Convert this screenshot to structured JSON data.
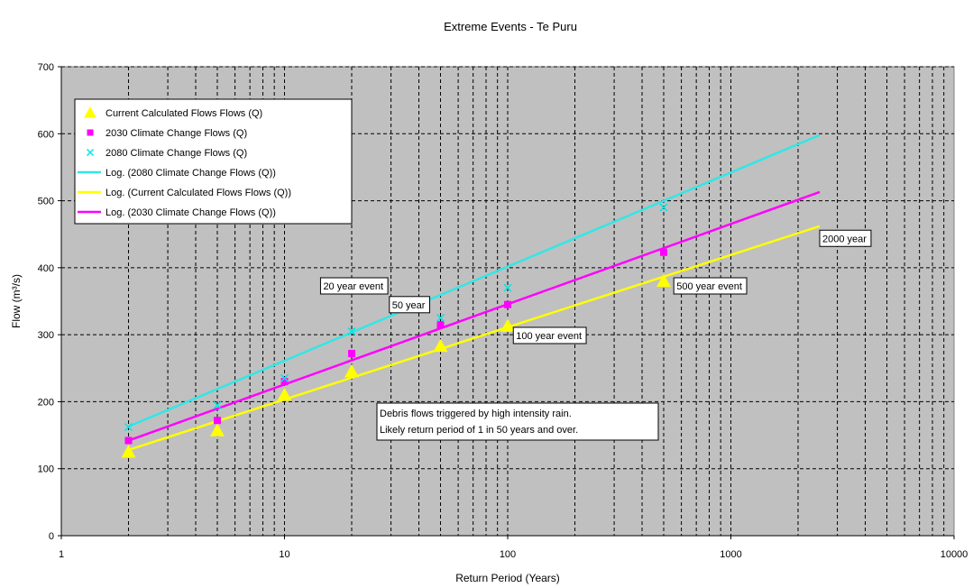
{
  "chart_data": {
    "type": "scatter",
    "title": "Extreme Events - Te Puru",
    "xlabel": "Return Period (Years)",
    "ylabel": "Flow (m³/s)",
    "xscale": "log",
    "xlim": [
      1,
      10000
    ],
    "ylim": [
      0,
      700
    ],
    "x_ticks": [
      1,
      10,
      100,
      1000,
      10000
    ],
    "x_tick_labels": [
      "1",
      "10",
      "100",
      "1000",
      "10000"
    ],
    "y_ticks": [
      0,
      100,
      200,
      300,
      400,
      500,
      600,
      700
    ],
    "y_tick_labels": [
      "0",
      "100",
      "200",
      "300",
      "400",
      "500",
      "600",
      "700"
    ],
    "grid": true,
    "legend_position": "top-left",
    "series": [
      {
        "name": "Current Calculated Flows Flows (Q)",
        "marker": "triangle",
        "color": "#ffff00",
        "x": [
          2,
          5,
          10,
          20,
          50,
          100,
          500
        ],
        "y": [
          125,
          157,
          210,
          245,
          283,
          313,
          380
        ]
      },
      {
        "name": "2030 Climate Change Flows (Q)",
        "marker": "square",
        "color": "#ff00ff",
        "x": [
          2,
          5,
          10,
          20,
          50,
          100,
          500
        ],
        "y": [
          142,
          172,
          230,
          272,
          315,
          345,
          423
        ]
      },
      {
        "name": "2080 Climate Change Flows (Q)",
        "marker": "x",
        "color": "#00e5e5",
        "x": [
          2,
          5,
          10,
          20,
          50,
          100,
          500
        ],
        "y": [
          162,
          195,
          235,
          305,
          325,
          370,
          490
        ]
      }
    ],
    "trendlines": [
      {
        "name": "Log. (2080 Climate Change Flows (Q))",
        "color": "#33e6e6",
        "x": [
          2,
          2500
        ],
        "y": [
          163,
          598
        ]
      },
      {
        "name": "Log. (Current Calculated Flows Flows (Q))",
        "color": "#ffff00",
        "x": [
          2,
          2500
        ],
        "y": [
          128,
          462
        ]
      },
      {
        "name": "Log. (2030 Climate Change Flows (Q))",
        "color": "#ff00ff",
        "x": [
          2,
          2500
        ],
        "y": [
          142,
          513
        ]
      }
    ],
    "annotations": [
      {
        "text": "20 year event",
        "x": 14.5,
        "y": 385
      },
      {
        "text": "50 year",
        "x": 29.5,
        "y": 357
      },
      {
        "text": "100 year event",
        "x": 106,
        "y": 311
      },
      {
        "text": "500 year event",
        "x": 555,
        "y": 385
      },
      {
        "text": "2000 year",
        "x": 2500,
        "y": 456
      }
    ],
    "note_lines": [
      "Debris flows triggered by high intensity rain.",
      "Likely return period of 1 in 50 years and over."
    ]
  }
}
